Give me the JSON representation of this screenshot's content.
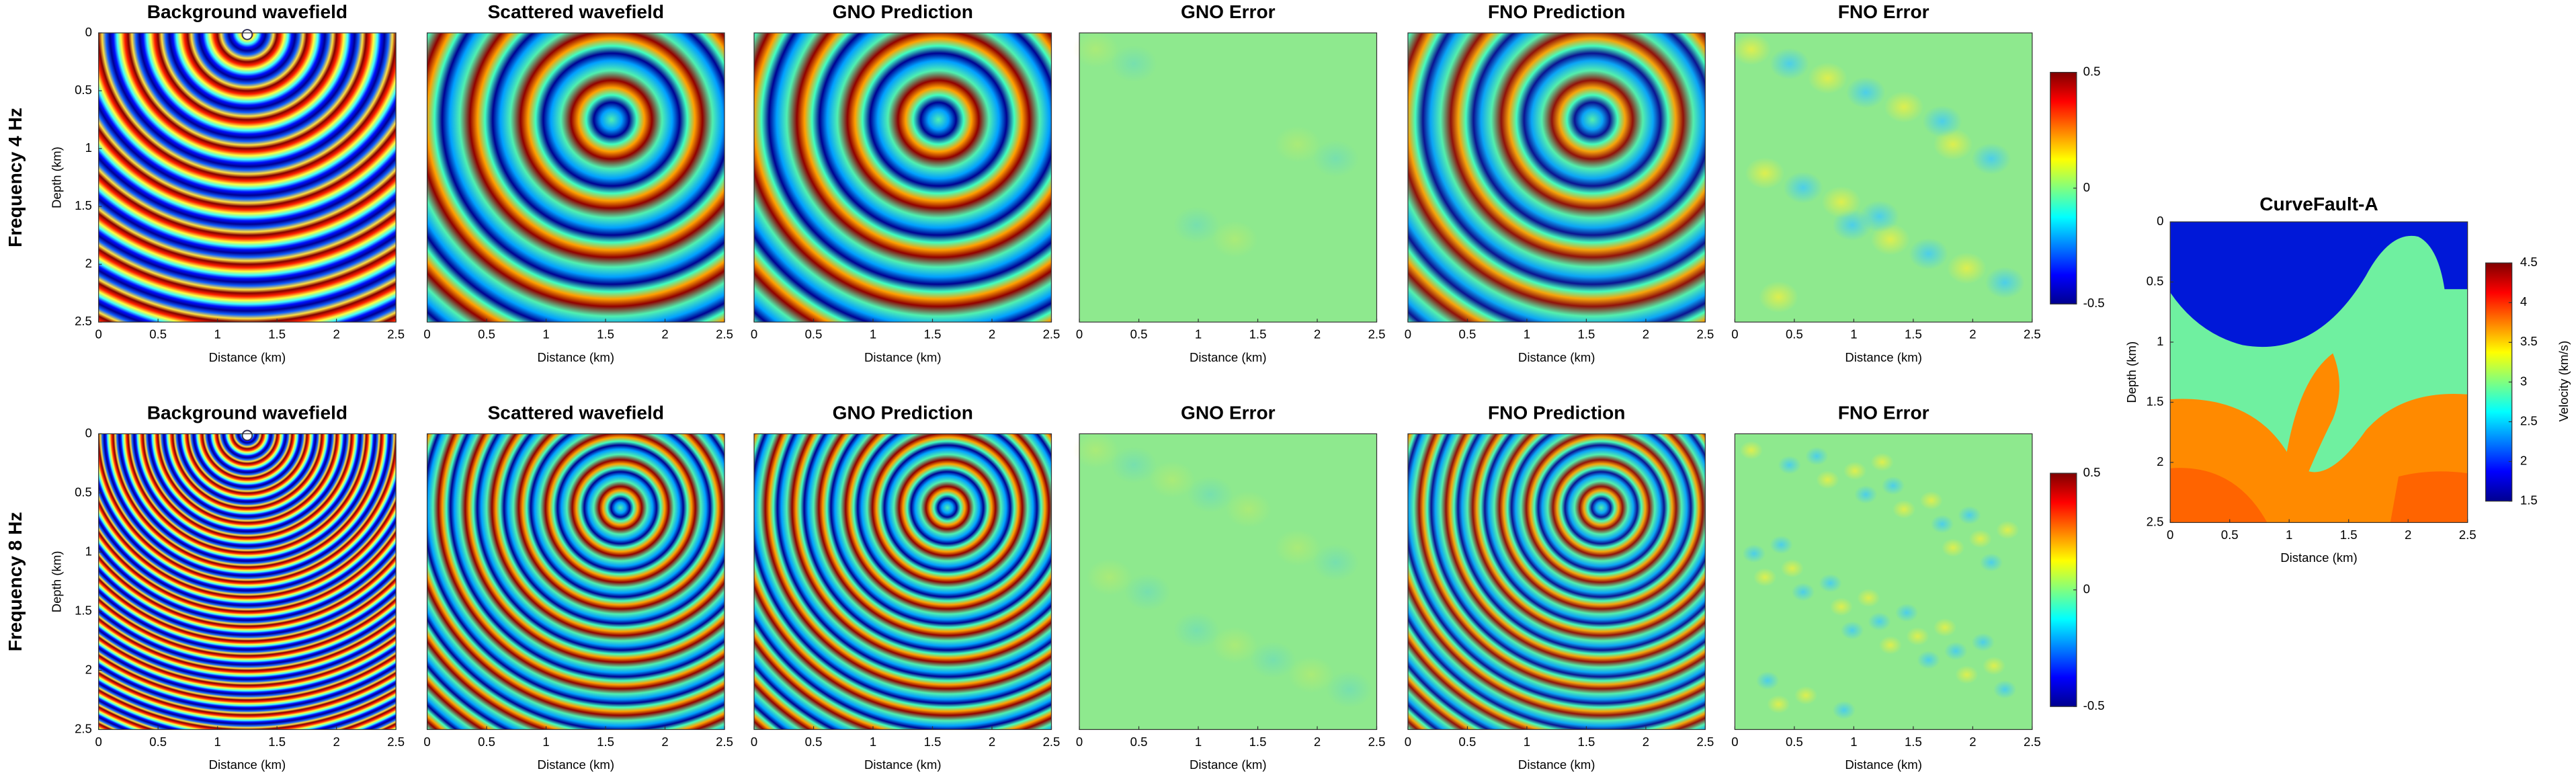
{
  "rows": [
    {
      "label": "Frequency 4 Hz"
    },
    {
      "label": "Frequency 8 Hz"
    }
  ],
  "panel_titles": [
    "Background wavefield",
    "Scattered wavefield",
    "GNO Prediction",
    "GNO Error",
    "FNO Prediction",
    "FNO Error"
  ],
  "x_axis": {
    "label": "Distance (km)",
    "ticks": [
      0,
      0.5,
      1,
      1.5,
      2,
      2.5
    ]
  },
  "y_axis": {
    "label": "Depth (km)",
    "ticks": [
      0,
      0.5,
      1,
      1.5,
      2,
      2.5
    ]
  },
  "wavefield_colorbar": {
    "ticks": [
      0.5,
      0,
      -0.5
    ]
  },
  "velocity_model": {
    "title": "CurveFault-A",
    "colorbar_label": "Velocity (km/s)",
    "colorbar_ticks": [
      4.5,
      4,
      3.5,
      3,
      2.5,
      2,
      1.5
    ]
  }
}
